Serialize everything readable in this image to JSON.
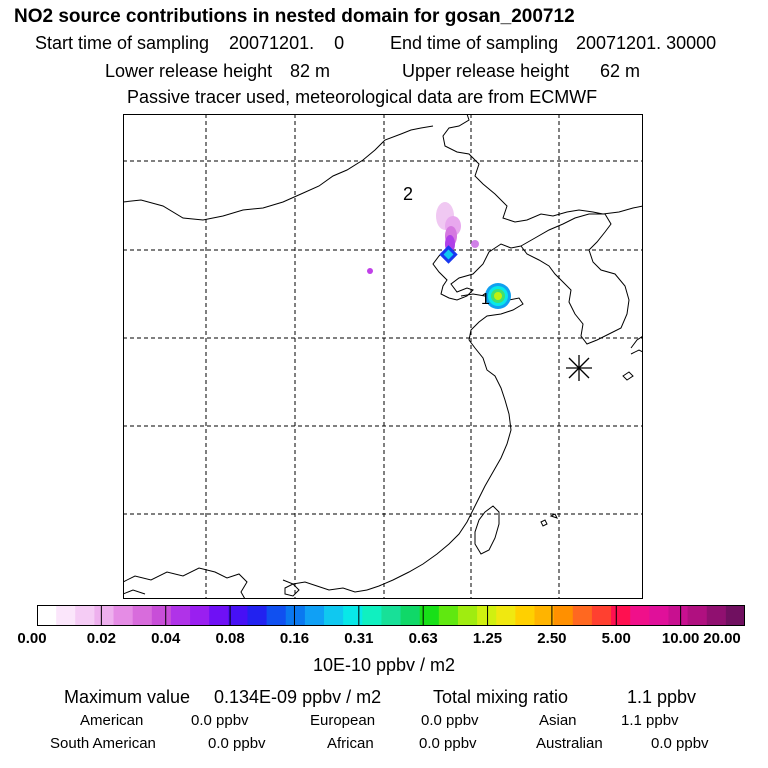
{
  "header": {
    "title": "NO2 source contributions in nested domain for gosan_200712",
    "start_label": "Start time of sampling",
    "start_value": "20071201.    0",
    "end_label": "End time of sampling",
    "end_value": "20071201. 30000",
    "lower_label": "Lower release height",
    "lower_value": "82 m",
    "upper_label": "Upper release height",
    "upper_value": "62 m",
    "note": "Passive tracer used, meteorological data are from ECMWF"
  },
  "map": {
    "source_labels": [
      "1",
      "2"
    ],
    "receptor_marker": "asterisk-icon"
  },
  "colorbar": {
    "colors": [
      "#ffffff",
      "#fbe6fb",
      "#f5ccf5",
      "#eeb0ee",
      "#e58ce5",
      "#d86cdc",
      "#c84ed8",
      "#b033e8",
      "#9a1ff0",
      "#6f10f5",
      "#4710f5",
      "#2222f0",
      "#1050f0",
      "#0a78f0",
      "#10a0f5",
      "#10c8f0",
      "#08e8e8",
      "#10f0c0",
      "#18e098",
      "#10d868",
      "#18e018",
      "#60e810",
      "#a0ec10",
      "#d0f010",
      "#f0e810",
      "#ffd000",
      "#ffb400",
      "#ff9000",
      "#ff6820",
      "#ff4030",
      "#ff1050",
      "#f0108a",
      "#e0109a",
      "#c81090",
      "#b01080",
      "#901070",
      "#701060"
    ],
    "ticks": [
      "0.00",
      "0.02",
      "0.04",
      "0.08",
      "0.16",
      "0.31",
      "0.63",
      "1.25",
      "2.50",
      "5.00",
      "10.00",
      "20.00"
    ],
    "unit": "10E-10 ppbv / m2"
  },
  "summary": {
    "max_label": "Maximum value",
    "max_value": "0.134E-09 ppbv / m2",
    "total_label": "Total mixing ratio",
    "total_value": "1.1 ppbv",
    "regions": [
      {
        "name": "American",
        "value": "0.0 ppbv"
      },
      {
        "name": "European",
        "value": "0.0 ppbv"
      },
      {
        "name": "Asian",
        "value": "1.1 ppbv"
      },
      {
        "name": "South American",
        "value": "0.0 ppbv"
      },
      {
        "name": "African",
        "value": "0.0 ppbv"
      },
      {
        "name": "Australian",
        "value": "0.0 ppbv"
      }
    ]
  }
}
